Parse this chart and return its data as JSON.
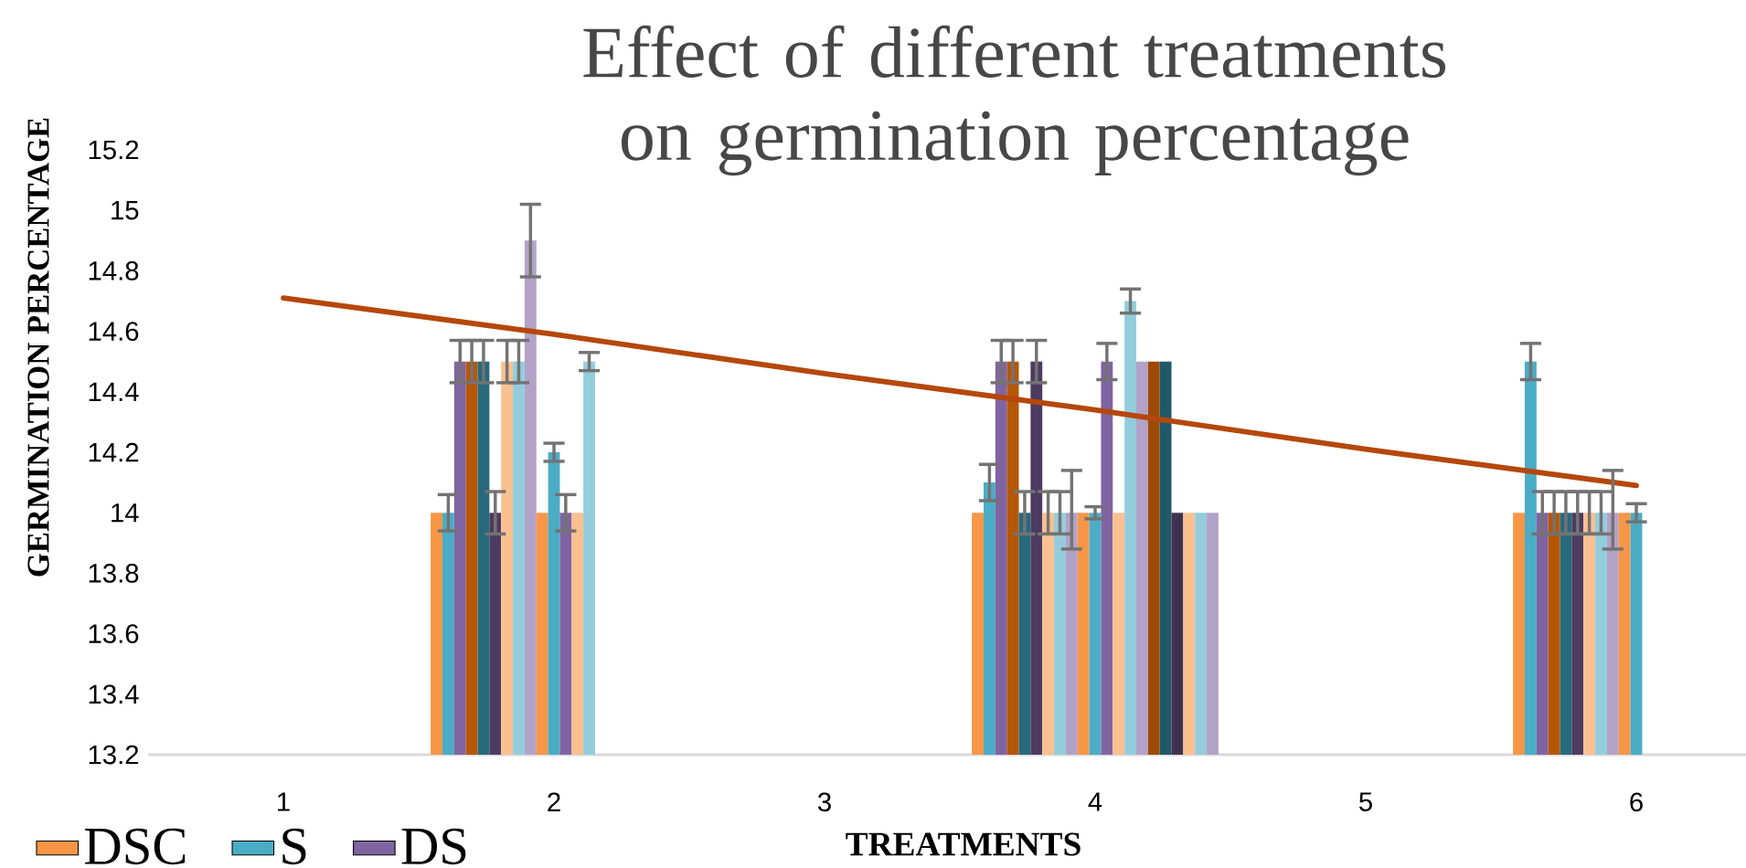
{
  "chart_data": {
    "type": "bar",
    "title": "Effect of different treatments on germination percentage",
    "xlabel": "TREATMENTS",
    "ylabel": "GERMINATION  PERCENTAGE",
    "categories": [
      "1",
      "2",
      "3",
      "4",
      "5",
      "6"
    ],
    "ylim": [
      13.2,
      15.2
    ],
    "yticks": [
      13.2,
      13.4,
      13.6,
      13.8,
      14,
      14.2,
      14.4,
      14.6,
      14.8,
      15,
      15.2
    ],
    "legend": "bottom left",
    "series": [
      {
        "name": "DSC",
        "color": "#f79646",
        "values": [
          null,
          14.0,
          null,
          14.0,
          null,
          14.0
        ],
        "errors": [
          null,
          null,
          null,
          null,
          null,
          null
        ]
      },
      {
        "name": "S",
        "color": "#4bacc6",
        "values": [
          null,
          14.0,
          null,
          14.1,
          null,
          14.5
        ],
        "errors": [
          null,
          0.06,
          null,
          0.06,
          null,
          0.06
        ]
      },
      {
        "name": "DS",
        "color": "#8064a2",
        "values": [
          null,
          14.5,
          null,
          14.5,
          null,
          14.0
        ],
        "errors": [
          null,
          0.07,
          null,
          0.07,
          null,
          0.07
        ]
      },
      {
        "color": "#b65708",
        "values": [
          null,
          14.5,
          null,
          14.5,
          null,
          14.0
        ],
        "errors": [
          null,
          0.07,
          null,
          0.07,
          null,
          0.07
        ]
      },
      {
        "color": "#276a7c",
        "values": [
          null,
          14.5,
          null,
          14.0,
          null,
          14.0
        ],
        "errors": [
          null,
          0.07,
          null,
          0.07,
          null,
          0.07
        ]
      },
      {
        "color": "#4d3b62",
        "values": [
          null,
          14.0,
          null,
          14.5,
          null,
          14.0
        ],
        "errors": [
          null,
          0.07,
          null,
          0.07,
          null,
          0.07
        ]
      },
      {
        "color": "#fac090",
        "values": [
          null,
          14.5,
          null,
          14.0,
          null,
          14.0
        ],
        "errors": [
          null,
          0.07,
          null,
          0.07,
          null,
          0.07
        ]
      },
      {
        "color": "#93cddd",
        "values": [
          null,
          14.5,
          null,
          14.0,
          null,
          14.0
        ],
        "errors": [
          null,
          0.07,
          null,
          0.07,
          null,
          0.07
        ]
      },
      {
        "color": "#b3a2c7",
        "values": [
          null,
          14.9,
          null,
          14.0,
          null,
          14.0
        ],
        "errors": [
          null,
          0.12,
          null,
          [
            13.88,
            14.14
          ],
          null,
          [
            13.88,
            14.14
          ]
        ]
      },
      {
        "color": "#f79646",
        "values": [
          null,
          14.0,
          null,
          14.0,
          null,
          14.0
        ],
        "errors": [
          null,
          null,
          null,
          null,
          null,
          null
        ]
      },
      {
        "color": "#4bacc6",
        "values": [
          null,
          14.2,
          null,
          14.0,
          null,
          14.0
        ],
        "errors": [
          null,
          0.03,
          null,
          0.02,
          null,
          0.03
        ]
      },
      {
        "color": "#8064a2",
        "values": [
          null,
          14.0,
          null,
          14.5,
          null,
          null
        ],
        "errors": [
          null,
          0.06,
          null,
          0.06,
          null,
          null
        ]
      },
      {
        "color": "#fac090",
        "values": [
          null,
          14.0,
          null,
          14.0,
          null,
          null
        ]
      },
      {
        "color": "#93cddd",
        "values": [
          null,
          14.5,
          null,
          14.7,
          null,
          null
        ],
        "errors": [
          null,
          0.03,
          null,
          0.04,
          null,
          null
        ]
      },
      {
        "color": "#b3a2c7",
        "values": [
          null,
          null,
          null,
          14.5,
          null,
          null
        ]
      },
      {
        "color": "#9c4a06",
        "values": [
          null,
          null,
          null,
          14.5,
          null,
          null
        ]
      },
      {
        "color": "#215968",
        "values": [
          null,
          null,
          null,
          14.5,
          null,
          null
        ]
      },
      {
        "color": "#403151",
        "values": [
          null,
          null,
          null,
          14.0,
          null,
          null
        ]
      },
      {
        "color": "#fac090",
        "values": [
          null,
          null,
          null,
          14.0,
          null,
          null
        ]
      },
      {
        "color": "#93cddd",
        "values": [
          null,
          null,
          null,
          14.0,
          null,
          null
        ]
      },
      {
        "color": "#b3a2c7",
        "values": [
          null,
          null,
          null,
          14.0,
          null,
          null
        ]
      },
      {
        "type": "line",
        "color": "#b5470b",
        "values": [
          14.71,
          14.59,
          14.46,
          14.34,
          14.21,
          14.09
        ]
      }
    ]
  }
}
